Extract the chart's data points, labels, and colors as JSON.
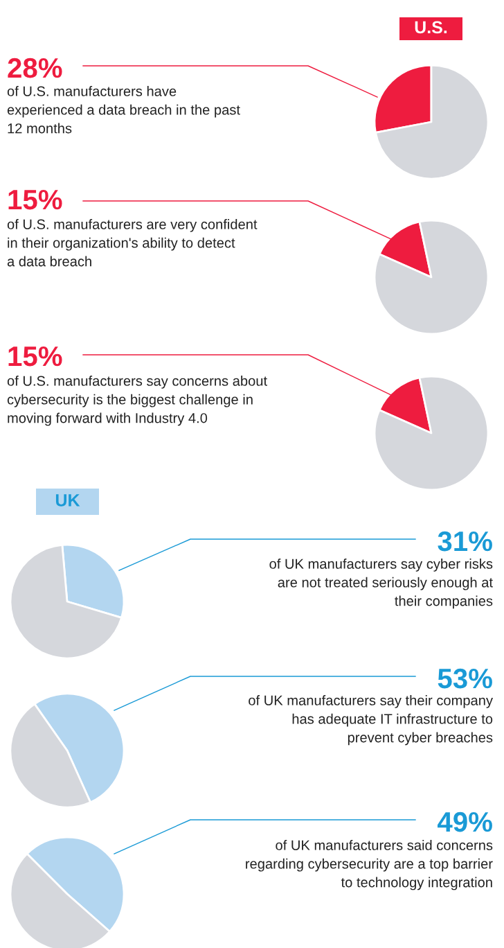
{
  "chart_data": [
    {
      "type": "pie",
      "title": "28%",
      "subtitle": "of U.S. manufacturers have\nexperienced a data breach in the past\n12 months",
      "categories": [
        null,
        null
      ],
      "values": [
        28,
        72
      ],
      "colors": [
        "#ee1c3f",
        "#d5d7dc"
      ],
      "annotations": [
        "U.S."
      ]
    },
    {
      "type": "pie",
      "title": "15%",
      "subtitle": "of U.S. manufacturers are very confident\nin their organization's ability to detect\na data breach",
      "categories": [
        null,
        null
      ],
      "values": [
        15,
        85
      ],
      "colors": [
        "#ee1c3f",
        "#d5d7dc"
      ]
    },
    {
      "type": "pie",
      "title": "15%",
      "subtitle": "of U.S. manufacturers say concerns about\ncybersecurity is the biggest challenge in\nmoving forward with Industry 4.0",
      "categories": [
        null,
        null
      ],
      "values": [
        15,
        85
      ],
      "colors": [
        "#ee1c3f",
        "#d5d7dc"
      ]
    },
    {
      "type": "pie",
      "title": "31%",
      "subtitle": "of UK manufacturers say cyber risks\nare not treated seriously enough at\ntheir companies",
      "categories": [
        null,
        null
      ],
      "values": [
        31,
        69
      ],
      "colors": [
        "#b3d6f0",
        "#d5d7dc"
      ],
      "annotations": [
        "UK"
      ]
    },
    {
      "type": "pie",
      "title": "53%",
      "subtitle": "of UK manufacturers say their company\nhas adequate IT infrastructure to\nprevent cyber breaches",
      "categories": [
        null,
        null
      ],
      "values": [
        53,
        47
      ],
      "colors": [
        "#b3d6f0",
        "#d5d7dc"
      ]
    },
    {
      "type": "pie",
      "title": "49%",
      "subtitle": "of UK manufacturers said concerns\nregarding cybersecurity are a top barrier\nto technology integration",
      "categories": [
        null,
        null
      ],
      "values": [
        49,
        51
      ],
      "colors": [
        "#b3d6f0",
        "#d5d7dc"
      ]
    }
  ]
}
